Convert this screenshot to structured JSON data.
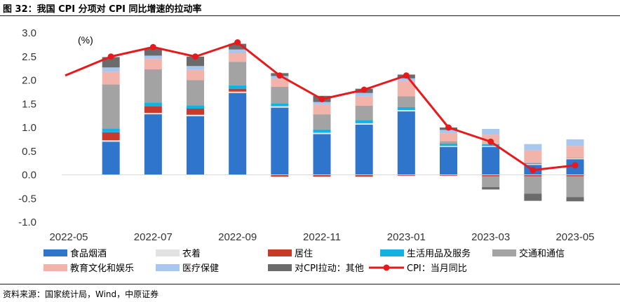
{
  "figure": {
    "title": "图 32：我国 CPI 分项对 CPI 同比增速的拉动率",
    "source": "资料来源：国家统计局，Wind，中原证券"
  },
  "chart_data": {
    "type": "bar",
    "stacked": true,
    "unit_label": "(%)",
    "ylim": [
      -1.0,
      3.0
    ],
    "yticks": [
      "3.0",
      "2.5",
      "2.0",
      "1.5",
      "1.0",
      "0.5",
      "0.0",
      "-0.5",
      "-1.0"
    ],
    "categories": [
      "2022-05",
      "2022-06",
      "2022-07",
      "2022-08",
      "2022-09",
      "2022-10",
      "2022-11",
      "2022-12",
      "2023-01",
      "2023-02",
      "2023-03",
      "2023-04",
      "2023-05"
    ],
    "xtick_labels": [
      "2022-05",
      "2022-07",
      "2022-09",
      "2022-11",
      "2023-01",
      "2023-03",
      "2023-05"
    ],
    "series": [
      {
        "name": "食品烟酒",
        "color": "#2e75cb",
        "values": [
          null,
          0.7,
          1.28,
          1.24,
          1.73,
          1.42,
          0.86,
          1.06,
          1.34,
          0.59,
          0.59,
          0.21,
          0.33
        ]
      },
      {
        "name": "衣着",
        "color": "#e2e2e2",
        "values": [
          null,
          0.03,
          0.03,
          0.03,
          0.03,
          0.03,
          0.03,
          0.03,
          0.03,
          0.02,
          0.02,
          0.02,
          0.02
        ]
      },
      {
        "name": "居住",
        "color": "#c9392c",
        "values": [
          null,
          0.17,
          0.14,
          0.13,
          0.06,
          -0.04,
          -0.04,
          -0.04,
          -0.02,
          -0.02,
          -0.03,
          -0.03,
          -0.03
        ]
      },
      {
        "name": "生活用品及服务",
        "color": "#14b2e3",
        "values": [
          null,
          0.08,
          0.08,
          0.07,
          0.07,
          0.06,
          0.07,
          0.07,
          0.06,
          0.05,
          0.04,
          0.02,
          0.01
        ]
      },
      {
        "name": "交通和通信",
        "color": "#a3a3a3",
        "values": [
          null,
          0.93,
          0.7,
          0.53,
          0.5,
          0.35,
          0.32,
          0.3,
          0.23,
          0.05,
          -0.23,
          -0.37,
          -0.44
        ]
      },
      {
        "name": "教育文化和娱乐",
        "color": "#f2b3ab",
        "values": [
          null,
          0.27,
          0.22,
          0.22,
          0.18,
          0.17,
          0.2,
          0.2,
          0.32,
          0.17,
          0.2,
          0.27,
          0.25
        ]
      },
      {
        "name": "医疗保健",
        "color": "#a8c7ee",
        "values": [
          null,
          0.09,
          0.07,
          0.08,
          0.08,
          0.06,
          0.06,
          0.07,
          0.06,
          0.07,
          0.12,
          0.13,
          0.14
        ]
      },
      {
        "name": "对CPI拉动：其他",
        "color": "#6b6b6b",
        "values": [
          null,
          0.22,
          0.15,
          0.2,
          0.12,
          0.06,
          0.13,
          0.09,
          0.08,
          0.05,
          -0.05,
          -0.15,
          -0.09
        ]
      }
    ],
    "line_series": {
      "name": "CPI：当月同比",
      "color": "#e8191b",
      "values": [
        2.1,
        2.5,
        2.7,
        2.5,
        2.8,
        2.1,
        1.6,
        1.8,
        2.1,
        1.0,
        0.7,
        0.1,
        0.2
      ]
    },
    "legend_order": [
      "食品烟酒",
      "衣着",
      "居住",
      "生活用品及服务",
      "交通和通信",
      "教育文化和娱乐",
      "医疗保健",
      "对CPI拉动：其他",
      "CPI：当月同比"
    ],
    "legend_position": "bottom"
  }
}
